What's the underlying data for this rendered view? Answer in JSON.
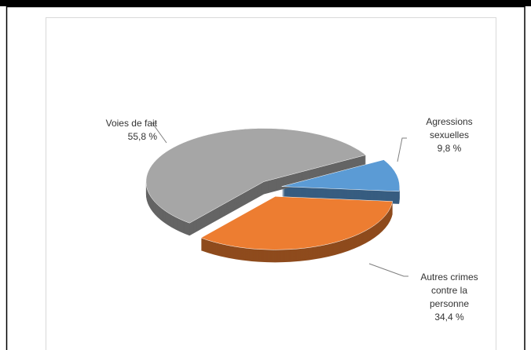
{
  "chart_data": {
    "type": "pie",
    "categories": [
      "Agressions sexuelles",
      "Autres crimes contre la personne",
      "Voies de fait"
    ],
    "values": [
      9.8,
      34.4,
      55.8
    ],
    "value_labels": [
      "9,8 %",
      "34,4 %",
      "55,8 %"
    ],
    "colors": [
      "#5b9bd5",
      "#ed7d31",
      "#a6a6a6"
    ]
  }
}
